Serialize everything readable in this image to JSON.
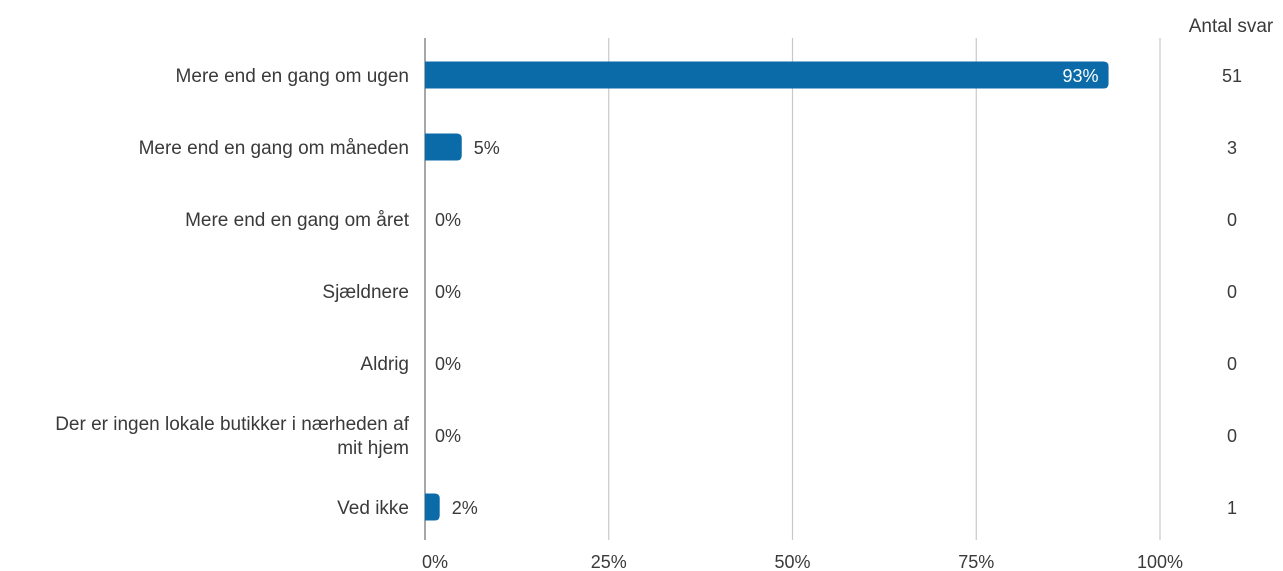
{
  "chart_data": {
    "type": "bar",
    "orientation": "horizontal",
    "categories": [
      "Mere end en gang om ugen",
      "Mere end en gang om måneden",
      "Mere end en gang om året",
      "Sjældnere",
      "Aldrig",
      "Der er ingen lokale butikker i nærheden af mit hjem",
      "Ved ikke"
    ],
    "category_lines": [
      [
        "Mere end en gang om ugen"
      ],
      [
        "Mere end en gang om måneden"
      ],
      [
        "Mere end en gang om året"
      ],
      [
        "Sjældnere"
      ],
      [
        "Aldrig"
      ],
      [
        "Der er ingen lokale butikker i nærheden af",
        "mit hjem"
      ],
      [
        "Ved ikke"
      ]
    ],
    "values": [
      93,
      5,
      0,
      0,
      0,
      0,
      2
    ],
    "value_labels": [
      "93%",
      "5%",
      "0%",
      "0%",
      "0%",
      "0%",
      "2%"
    ],
    "counts": [
      51,
      3,
      0,
      0,
      0,
      0,
      1
    ],
    "count_header": "Antal svar",
    "x_ticks": [
      0,
      25,
      50,
      75,
      100
    ],
    "x_tick_labels": [
      "0%",
      "25%",
      "50%",
      "75%",
      "100%"
    ],
    "xlim": [
      0,
      100
    ],
    "grid": true,
    "bar_color": "#0b6aa8",
    "grid_color": "#c8c8c8",
    "axis_color": "#8a8a8a"
  }
}
